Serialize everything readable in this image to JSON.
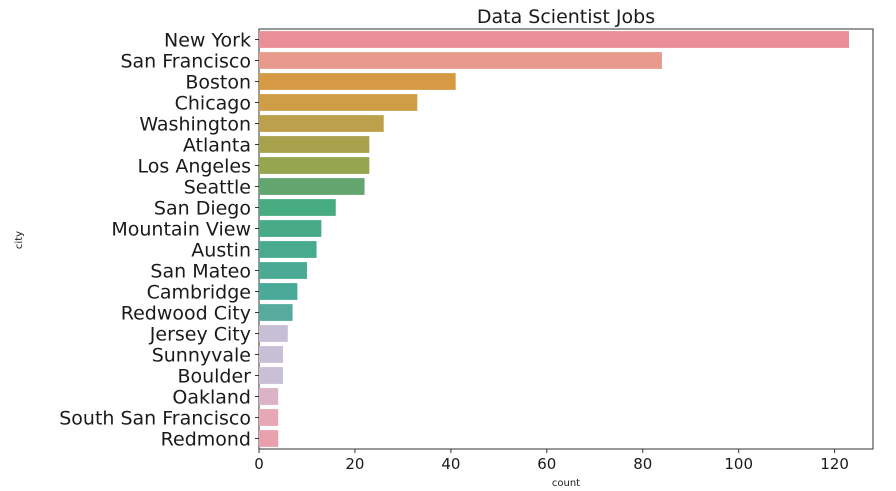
{
  "chart_data": {
    "type": "bar",
    "orientation": "horizontal",
    "title": "Data Scientist Jobs",
    "xlabel": "count",
    "ylabel": "city",
    "xlim": [
      0,
      128
    ],
    "xticks": [
      0,
      20,
      40,
      60,
      80,
      100,
      120
    ],
    "grid": false,
    "legend": "none",
    "categories": [
      "New York",
      "San Francisco",
      "Boston",
      "Chicago",
      "Washington",
      "Atlanta",
      "Los Angeles",
      "Seattle",
      "San Diego",
      "Mountain View",
      "Austin",
      "San Mateo",
      "Cambridge",
      "Redwood City",
      "Jersey City",
      "Sunnyvale",
      "Boulder",
      "Oakland",
      "South San Francisco",
      "Redmond"
    ],
    "values": [
      123,
      84,
      41,
      33,
      26,
      23,
      23,
      22,
      16,
      13,
      12,
      10,
      8,
      7,
      6,
      5,
      5,
      4,
      4,
      4
    ],
    "colors": [
      "#ea8f98",
      "#e89a8d",
      "#d69a45",
      "#cf9d46",
      "#bca04c",
      "#a8a24d",
      "#95a650",
      "#62a56e",
      "#48ac82",
      "#48ab88",
      "#49ab8e",
      "#4aaa94",
      "#4aaa9a",
      "#56ab9e",
      "#c6bfd6",
      "#c7bfd6",
      "#c9bfd6",
      "#dcb2c6",
      "#e5a9b5",
      "#e9a0ac"
    ]
  }
}
